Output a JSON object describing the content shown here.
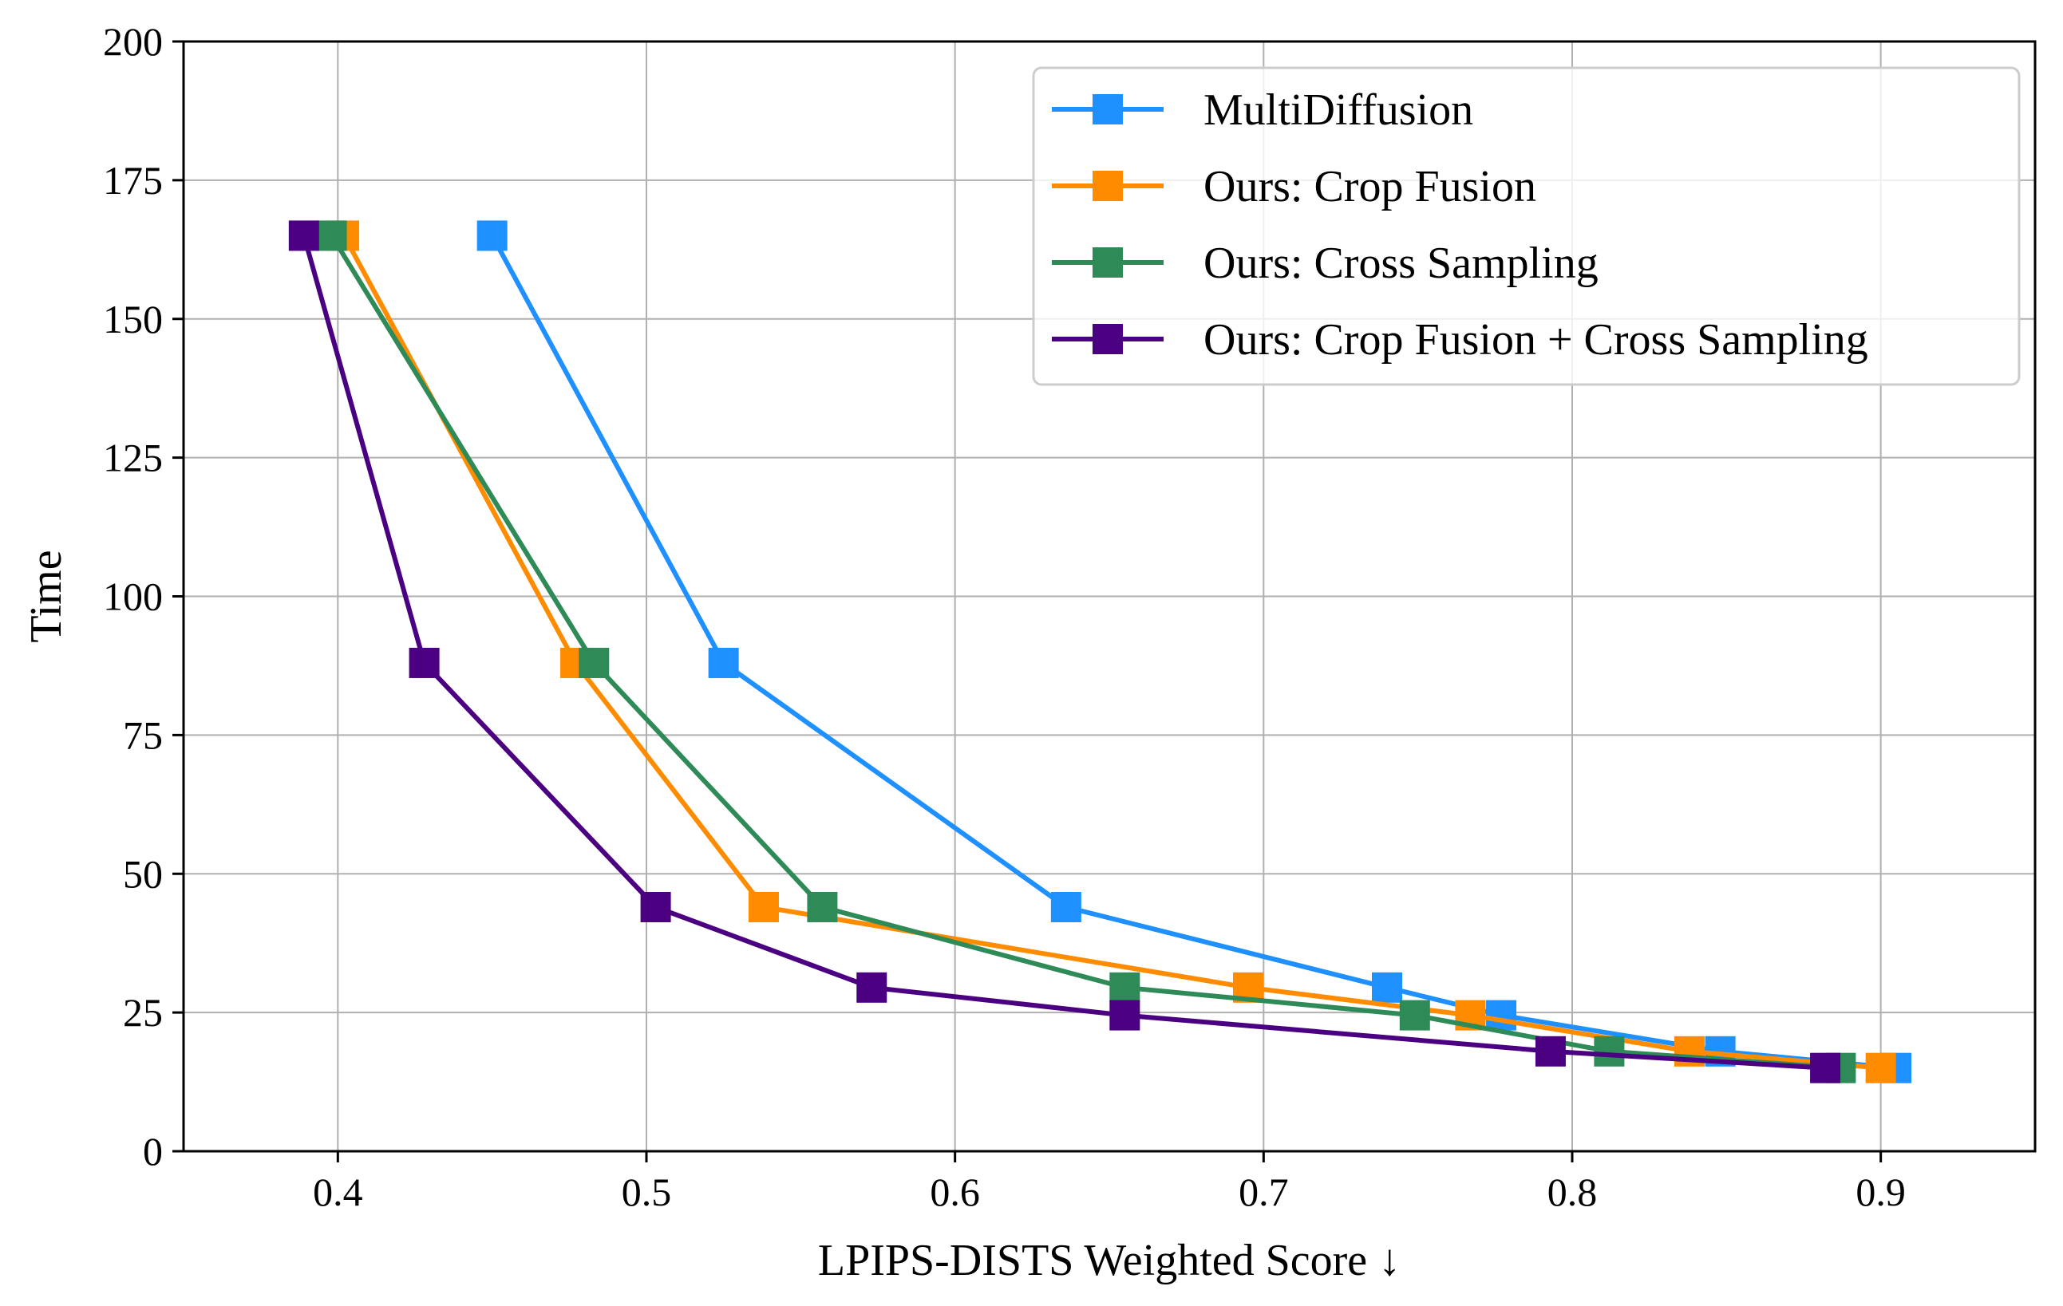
{
  "chart_data": {
    "type": "line",
    "title": "",
    "xlabel": "LPIPS-DISTS Weighted Score ↓",
    "ylabel": "Time",
    "xlim": [
      0.35,
      0.95
    ],
    "ylim": [
      0,
      200
    ],
    "xticks": [
      0.4,
      0.5,
      0.6,
      0.7,
      0.8,
      0.9
    ],
    "xtick_labels": [
      "0.4",
      "0.5",
      "0.6",
      "0.7",
      "0.8",
      "0.9"
    ],
    "yticks": [
      0,
      25,
      50,
      75,
      100,
      125,
      150,
      175,
      200
    ],
    "ytick_labels": [
      "0",
      "25",
      "50",
      "75",
      "100",
      "125",
      "150",
      "175",
      "200"
    ],
    "grid": true,
    "legend_position": "top-right",
    "marker": "square",
    "series": [
      {
        "name": "MultiDiffusion",
        "color": "#1E90FF",
        "x": [
          0.45,
          0.525,
          0.636,
          0.74,
          0.777,
          0.848,
          0.905
        ],
        "y": [
          165,
          88,
          44,
          29.5,
          24.5,
          18,
          15
        ]
      },
      {
        "name": "Ours: Crop Fusion",
        "color": "#FF8C00",
        "x": [
          0.402,
          0.477,
          0.538,
          0.695,
          0.767,
          0.838,
          0.9
        ],
        "y": [
          165,
          88,
          44,
          29.5,
          24.5,
          18,
          15
        ]
      },
      {
        "name": "Ours: Cross Sampling",
        "color": "#2E8B57",
        "x": [
          0.398,
          0.483,
          0.557,
          0.655,
          0.749,
          0.812,
          0.887
        ],
        "y": [
          165,
          88,
          44,
          29.5,
          24.5,
          18,
          15
        ]
      },
      {
        "name": "Ours: Crop Fusion + Cross Sampling",
        "color": "#4B0082",
        "x": [
          0.389,
          0.428,
          0.503,
          0.573,
          0.655,
          0.793,
          0.882
        ],
        "y": [
          165,
          88,
          44,
          29.5,
          24.5,
          18,
          15
        ]
      }
    ]
  }
}
